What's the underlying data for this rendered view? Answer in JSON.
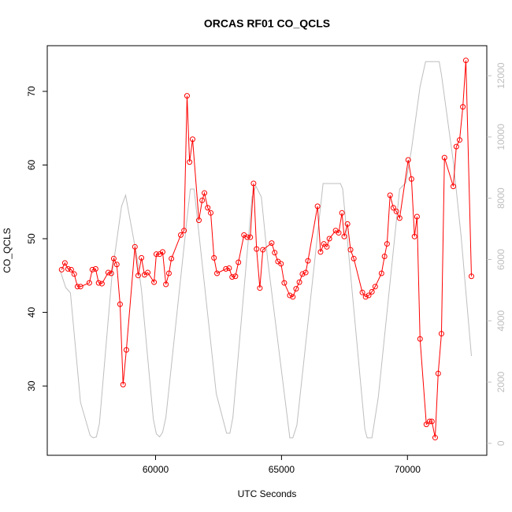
{
  "chart_data": {
    "type": "line",
    "title": "ORCAS RF01 CO_QCLS",
    "xlabel": "UTC Seconds",
    "ylabel": "CO_QCLS",
    "xlim": [
      55700,
      73150
    ],
    "xticks": [
      60000,
      65000,
      70000
    ],
    "ylim": [
      20.6,
      76.2
    ],
    "yticks": [
      30,
      40,
      50,
      60,
      70
    ],
    "y2lim": [
      -390,
      12980
    ],
    "y2ticks": [
      0,
      2000,
      4000,
      6000,
      8000,
      10000,
      12000
    ],
    "y2color": "#bebebe",
    "series": [
      {
        "color": "#bebebe",
        "axis": "y2",
        "markers": false,
        "x": [
          56210,
          56430,
          56620,
          57020,
          57400,
          57520,
          57650,
          57770,
          58280,
          58650,
          58810,
          59280,
          59440,
          59910,
          60030,
          60160,
          60280,
          60410,
          61220,
          61380,
          61530,
          62410,
          62820,
          62950,
          63070,
          63830,
          63980,
          64200,
          64450,
          65330,
          65450,
          65610,
          66650,
          67340,
          67430,
          68310,
          68400,
          68590,
          68840,
          69690,
          69940,
          70160,
          70500,
          70720,
          71260,
          71350,
          71820,
          72130,
          72540
        ],
        "values": [
          5650,
          5090,
          4910,
          1340,
          260,
          180,
          210,
          640,
          5580,
          7740,
          8100,
          5990,
          5010,
          800,
          310,
          210,
          360,
          850,
          7120,
          8300,
          8300,
          1620,
          330,
          330,
          850,
          8040,
          8400,
          8040,
          5990,
          180,
          180,
          590,
          8480,
          8480,
          8300,
          460,
          180,
          180,
          1490,
          8300,
          8510,
          9590,
          11640,
          12460,
          12460,
          12030,
          9200,
          6760,
          2850
        ]
      },
      {
        "color": "#ff0000",
        "axis": "y",
        "markers": true,
        "x": [
          56270,
          56400,
          56525,
          56650,
          56770,
          56900,
          57020,
          57370,
          57490,
          57620,
          57740,
          57870,
          58120,
          58240,
          58340,
          58460,
          58590,
          58710,
          58840,
          59180,
          59310,
          59440,
          59560,
          59690,
          59940,
          60030,
          60160,
          60280,
          60410,
          60530,
          60630,
          61000,
          61130,
          61250,
          61350,
          61470,
          61720,
          61850,
          61940,
          62070,
          62190,
          62320,
          62440,
          62790,
          62920,
          63040,
          63170,
          63290,
          63510,
          63640,
          63760,
          63890,
          64010,
          64140,
          64260,
          64610,
          64730,
          64860,
          64980,
          65110,
          65330,
          65450,
          65580,
          65710,
          65830,
          65960,
          66050,
          66430,
          66550,
          66680,
          66800,
          66900,
          67150,
          67270,
          67400,
          67490,
          67620,
          67740,
          67870,
          68210,
          68340,
          68460,
          68590,
          68720,
          68970,
          69090,
          69190,
          69310,
          69440,
          69560,
          69690,
          70030,
          70160,
          70280,
          70380,
          70500,
          70750,
          70880,
          70970,
          71100,
          71220,
          71350,
          71470,
          71820,
          71940,
          72070,
          72200,
          72320,
          72540
        ],
        "values": [
          45.8,
          46.7,
          45.9,
          45.8,
          45.2,
          43.5,
          43.5,
          44.0,
          45.8,
          45.9,
          44.0,
          43.9,
          45.4,
          45.3,
          47.3,
          46.5,
          41.1,
          30.2,
          34.9,
          48.9,
          45.0,
          47.4,
          45.1,
          45.4,
          44.1,
          47.9,
          47.9,
          48.2,
          43.8,
          45.3,
          47.3,
          50.5,
          51.1,
          69.4,
          60.4,
          63.5,
          52.5,
          55.2,
          56.2,
          54.2,
          53.5,
          47.4,
          45.3,
          45.9,
          46.0,
          44.8,
          44.9,
          46.8,
          50.5,
          50.2,
          50.2,
          57.5,
          48.6,
          43.3,
          48.5,
          49.4,
          48.1,
          46.9,
          46.6,
          44.0,
          42.3,
          42.1,
          43.2,
          44.1,
          45.2,
          45.4,
          47.0,
          54.4,
          48.2,
          49.3,
          48.9,
          50.0,
          51.1,
          50.8,
          53.5,
          50.3,
          52.0,
          48.5,
          47.3,
          42.7,
          42.1,
          42.3,
          42.8,
          43.5,
          45.3,
          47.6,
          49.3,
          55.9,
          54.2,
          53.7,
          52.8,
          60.7,
          58.1,
          50.3,
          53.0,
          36.4,
          24.8,
          25.2,
          25.2,
          23.0,
          31.7,
          37.1,
          61.0,
          57.1,
          62.5,
          63.4,
          67.9,
          74.2,
          44.9
        ]
      }
    ]
  }
}
